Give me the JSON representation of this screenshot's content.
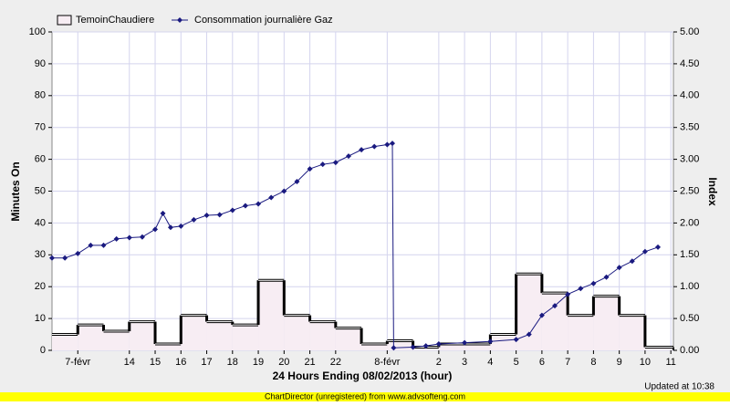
{
  "chart_data": {
    "type": "step-line",
    "x_title": "24 Hours Ending 08/02/2013 (hour)",
    "y_title": "Minutes On",
    "y2_title": "Index",
    "updated": "Updated at 10:38",
    "footer": "ChartDirector (unregistered) from www.advsofteng.com",
    "grid": true,
    "xlim": [
      11,
      35.1
    ],
    "xticks": [
      {
        "value": 12,
        "label": "7-févr"
      },
      14,
      15,
      16,
      17,
      18,
      19,
      20,
      21,
      22,
      {
        "value": 24,
        "label": "8-févr"
      },
      {
        "value": 26,
        "label": "2"
      },
      {
        "value": 27,
        "label": "3"
      },
      {
        "value": 28,
        "label": "4"
      },
      {
        "value": 29,
        "label": "5"
      },
      {
        "value": 30,
        "label": "6"
      },
      {
        "value": 31,
        "label": "7"
      },
      {
        "value": 32,
        "label": "8"
      },
      {
        "value": 33,
        "label": "9"
      },
      {
        "value": 34,
        "label": "10"
      },
      {
        "value": 35,
        "label": "11"
      }
    ],
    "ylim": [
      0,
      100
    ],
    "yticks": [
      0,
      10,
      20,
      30,
      40,
      50,
      60,
      70,
      80,
      90,
      100
    ],
    "y2lim": [
      0,
      5
    ],
    "y2ticks": [
      {
        "value": 0,
        "label": "0.00"
      },
      {
        "value": 0.5,
        "label": "0.50"
      },
      {
        "value": 1,
        "label": "1.00"
      },
      {
        "value": 1.5,
        "label": "1.50"
      },
      {
        "value": 2,
        "label": "2.00"
      },
      {
        "value": 2.5,
        "label": "2.50"
      },
      {
        "value": 3,
        "label": "3.00"
      },
      {
        "value": 3.5,
        "label": "3.50"
      },
      {
        "value": 4,
        "label": "4.00"
      },
      {
        "value": 4.5,
        "label": "4.50"
      },
      {
        "value": 5,
        "label": "5.00"
      }
    ],
    "series": [
      {
        "name": "TemoinChaudiere",
        "color": "#000000",
        "fill": "#f7edf3",
        "x": [
          11,
          12,
          13,
          14,
          15,
          16,
          17,
          18,
          19,
          20,
          21,
          22,
          23,
          24,
          25,
          26,
          27,
          28,
          29,
          30,
          31,
          32,
          33,
          34
        ],
        "values": [
          5,
          8,
          6,
          9,
          2,
          11,
          9,
          8,
          22,
          11,
          9,
          7,
          2,
          3,
          1,
          2,
          2,
          5,
          24,
          18,
          11,
          17,
          11,
          1
        ]
      },
      {
        "name": "Consommation journalière Gaz",
        "color": "#1a1a80",
        "axis": "y2",
        "x": [
          11,
          11.5,
          12,
          12.5,
          13,
          13.5,
          14,
          14.5,
          15,
          15.3,
          15.6,
          16,
          16.5,
          17,
          17.5,
          18,
          18.5,
          19,
          19.5,
          20,
          20.5,
          21,
          21.5,
          22,
          22.5,
          23,
          23.5,
          24,
          24.2,
          24.25,
          25,
          25.5,
          26,
          27,
          28,
          29,
          29.5,
          30,
          30.5,
          31,
          31.5,
          32,
          32.5,
          33,
          33.5,
          34,
          34.5
        ],
        "values": [
          1.45,
          1.45,
          1.52,
          1.65,
          1.65,
          1.75,
          1.77,
          1.78,
          1.9,
          2.15,
          1.93,
          1.95,
          2.05,
          2.12,
          2.13,
          2.2,
          2.27,
          2.3,
          2.4,
          2.5,
          2.65,
          2.85,
          2.92,
          2.95,
          3.05,
          3.15,
          3.2,
          3.23,
          3.25,
          0.04,
          0.05,
          0.07,
          0.1,
          0.12,
          0.14,
          0.17,
          0.25,
          0.55,
          0.7,
          0.88,
          0.97,
          1.05,
          1.15,
          1.3,
          1.4,
          1.55,
          1.62
        ]
      }
    ]
  }
}
